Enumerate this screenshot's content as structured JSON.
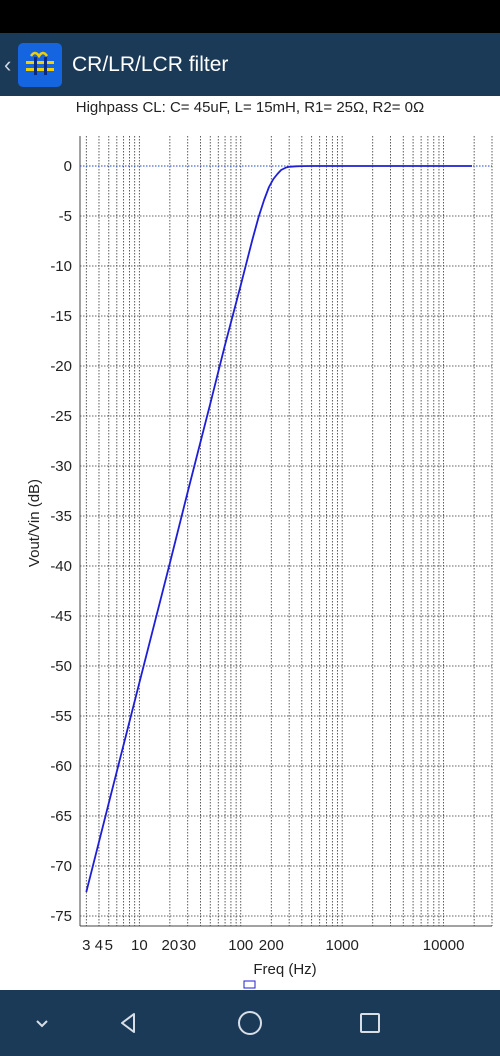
{
  "app": {
    "title": "CR/LR/LCR filter",
    "icons": {
      "back": "chevron-left-icon",
      "app": "filter-app-icon"
    }
  },
  "nav": {
    "icons": [
      "chevron-down-icon",
      "back-triangle-icon",
      "home-circle-icon",
      "recents-square-icon"
    ]
  },
  "colors": {
    "appbar": "#1b3a58",
    "curve": "#1f1fd6",
    "zero_line": "#2244cc",
    "icon_blue": "#1565e0",
    "icon_yellow": "#f0d000"
  },
  "chart_data": {
    "type": "line",
    "title": "Highpass CL: C= 45uF, L= 15mH, R1= 25Ω, R2= 0Ω",
    "xlabel": "Freq (Hz)",
    "ylabel": "Vout/Vin (dB)",
    "xscale": "log",
    "xlim": [
      2.6,
      30000
    ],
    "ylim": [
      -76,
      3
    ],
    "grid": true,
    "x_tick_labels": [
      {
        "value": 3,
        "label": "3"
      },
      {
        "value": 4,
        "label": "4"
      },
      {
        "value": 5,
        "label": "5"
      },
      {
        "value": 10,
        "label": "10"
      },
      {
        "value": 20,
        "label": "20"
      },
      {
        "value": 30,
        "label": "30"
      },
      {
        "value": 100,
        "label": "100"
      },
      {
        "value": 200,
        "label": "200"
      },
      {
        "value": 1000,
        "label": "1000"
      },
      {
        "value": 10000,
        "label": "10000"
      }
    ],
    "y_ticks": [
      0,
      -5,
      -10,
      -15,
      -20,
      -25,
      -30,
      -35,
      -40,
      -45,
      -50,
      -55,
      -60,
      -65,
      -70,
      -75
    ],
    "series": [
      {
        "x": [
          3,
          5,
          10,
          20,
          30,
          50,
          70,
          100,
          130,
          150,
          170,
          190,
          210,
          230,
          250,
          280,
          300,
          350,
          400,
          500,
          700,
          1000,
          10000,
          25000
        ],
        "y": [
          -72.6,
          -63.7,
          -51.7,
          -39.7,
          -32.6,
          -23.8,
          -17.9,
          -11.9,
          -7.4,
          -5.1,
          -3.4,
          -2.1,
          -1.3,
          -0.8,
          -0.4,
          -0.15,
          -0.08,
          -0.03,
          -0.01,
          0,
          0,
          0,
          0,
          0
        ]
      }
    ],
    "reference_line_y": 0
  }
}
